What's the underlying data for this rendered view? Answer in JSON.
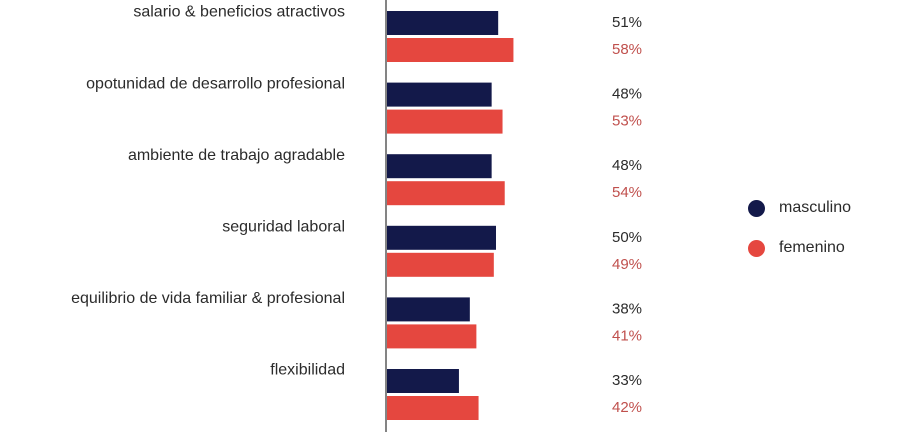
{
  "chart_data": {
    "type": "bar",
    "orientation": "horizontal",
    "categories": [
      "salario & beneficios atractivos",
      "opotunidad de desarrollo profesional",
      "ambiente de trabajo agradable",
      "seguridad laboral",
      "equilibrio de vida familiar & profesional",
      "flexibilidad"
    ],
    "series": [
      {
        "name": "masculino",
        "color": "#13194a",
        "values": [
          51,
          48,
          48,
          50,
          38,
          33
        ],
        "labels": [
          "51%",
          "48%",
          "48%",
          "50%",
          "38%",
          "33%"
        ]
      },
      {
        "name": "femenino",
        "color": "#e5473f",
        "values": [
          58,
          53,
          54,
          49,
          41,
          42
        ],
        "labels": [
          "58%",
          "53%",
          "54%",
          "49%",
          "41%",
          "42%"
        ]
      }
    ],
    "value_label_colors": [
      "#2b2b2b",
      "#c0504d"
    ],
    "xlim": [
      0,
      100
    ],
    "legend_position": "right",
    "grid": false
  }
}
